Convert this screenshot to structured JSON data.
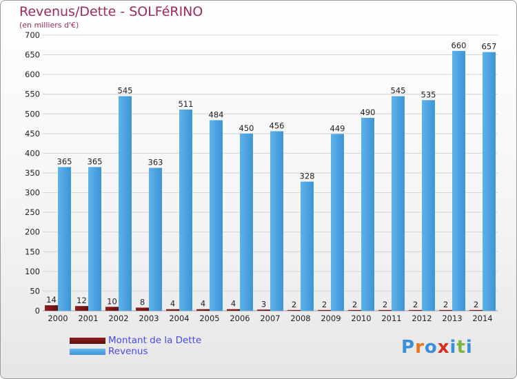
{
  "title": "Revenus/Dette - SOLFéRINO",
  "subtitle": "(en milliers d'€)",
  "logo": {
    "text": "Proxiti",
    "letters": [
      "P",
      "r",
      "o",
      "x",
      "i",
      "t",
      "i"
    ],
    "colors": [
      "#3a8fd8",
      "#e8731e",
      "#3a8fd8",
      "#d62d20",
      "#3a8fd8",
      "#7cb342",
      "#3a8fd8"
    ]
  },
  "chart_data": {
    "type": "bar",
    "categories": [
      "2000",
      "2001",
      "2002",
      "2003",
      "2004",
      "2005",
      "2006",
      "2007",
      "2008",
      "2009",
      "2010",
      "2011",
      "2012",
      "2013",
      "2014"
    ],
    "series": [
      {
        "name": "Montant de la Dette",
        "color": "#7a1515",
        "values": [
          14,
          12,
          10,
          8,
          4,
          4,
          4,
          3,
          2,
          2,
          2,
          2,
          2,
          2,
          2
        ]
      },
      {
        "name": "Revenus",
        "color": "#4aa3e0",
        "values": [
          365,
          365,
          545,
          363,
          511,
          484,
          450,
          456,
          328,
          449,
          490,
          545,
          535,
          660,
          657
        ]
      }
    ],
    "ylim": [
      0,
      700
    ],
    "yticks": [
      0,
      50,
      100,
      150,
      200,
      250,
      300,
      350,
      400,
      450,
      500,
      550,
      600,
      650,
      700
    ],
    "grid": true,
    "legend_position": "bottom-left"
  }
}
